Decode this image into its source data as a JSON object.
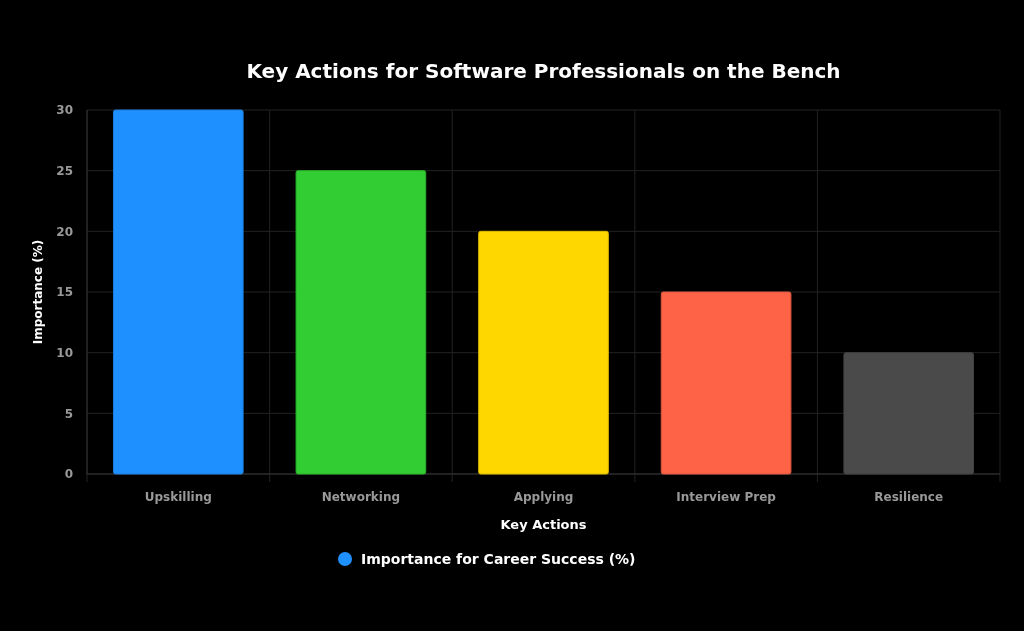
{
  "chart_data": {
    "type": "bar",
    "title": "Key Actions for Software Professionals on the Bench",
    "xlabel": "Key Actions",
    "ylabel": "Importance (%)",
    "categories": [
      "Upskilling",
      "Networking",
      "Applying",
      "Interview Prep",
      "Resilience"
    ],
    "series": [
      {
        "name": "Importance for Career Success (%)",
        "color": "#1e90ff",
        "colors": [
          "#1e90ff",
          "#32cd32",
          "#ffd700",
          "#ff6347",
          "#4a4a4a"
        ],
        "values": [
          30,
          25,
          20,
          15,
          10
        ]
      }
    ],
    "ylim": [
      0,
      30
    ],
    "yticks": [
      0,
      5,
      10,
      15,
      20,
      25,
      30
    ],
    "grid": true,
    "legend": "bottom"
  }
}
